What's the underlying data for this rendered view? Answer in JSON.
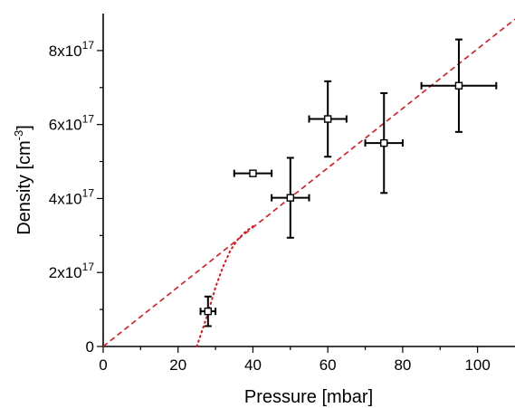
{
  "chart_data": {
    "type": "scatter",
    "title": "",
    "xlabel": "Pressure [mbar]",
    "ylabel_parts": {
      "main": "Density [cm",
      "sup": "-3",
      "end": "]"
    },
    "xlim": [
      0,
      110
    ],
    "ylim": [
      0,
      9e+17
    ],
    "x_ticks": [
      0,
      20,
      40,
      60,
      80,
      100
    ],
    "x_tick_labels": [
      "0",
      "20",
      "40",
      "60",
      "80",
      "100"
    ],
    "y_ticks": [
      0,
      2e+17,
      4e+17,
      6e+17,
      8e+17
    ],
    "y_tick_labels": [
      {
        "base": "0",
        "exp": ""
      },
      {
        "base": "2x10",
        "exp": "17"
      },
      {
        "base": "4x10",
        "exp": "17"
      },
      {
        "base": "6x10",
        "exp": "17"
      },
      {
        "base": "8x10",
        "exp": "17"
      }
    ],
    "grid": false,
    "colors": {
      "points": "#000000",
      "fit": "#e0161e"
    },
    "series": [
      {
        "points": [
          {
            "x": 28,
            "y": 9.5e+16,
            "xerr": 2,
            "yerr": 4e+16
          },
          {
            "x": 40,
            "y": 4.68e+17,
            "xerr": 5,
            "yerr": 2000000000000000.0
          },
          {
            "x": 50,
            "y": 4.02e+17,
            "xerr": 5,
            "yerr": 1.08e+17
          },
          {
            "x": 60,
            "y": 6.15e+17,
            "xerr": 5,
            "yerr": 1.02e+17
          },
          {
            "x": 75,
            "y": 5.5e+17,
            "xerr": 5,
            "yerr": 1.35e+17
          },
          {
            "x": 95,
            "y": 7.05e+17,
            "xerr": 10,
            "yerr": 1.25e+17
          }
        ]
      }
    ],
    "fits": [
      {
        "style": "dashed",
        "x": [
          0,
          110
        ],
        "y": [
          0,
          8.85e+17
        ]
      },
      {
        "style": "dotted",
        "x": [
          25,
          26,
          27,
          28,
          29,
          30,
          32,
          34,
          36,
          38,
          40
        ],
        "y": [
          0,
          3e+16,
          6e+16,
          9e+16,
          1.25e+17,
          1.6e+17,
          2.15e+17,
          2.6e+17,
          2.9e+17,
          3.1e+17,
          3.25e+17
        ]
      }
    ]
  }
}
